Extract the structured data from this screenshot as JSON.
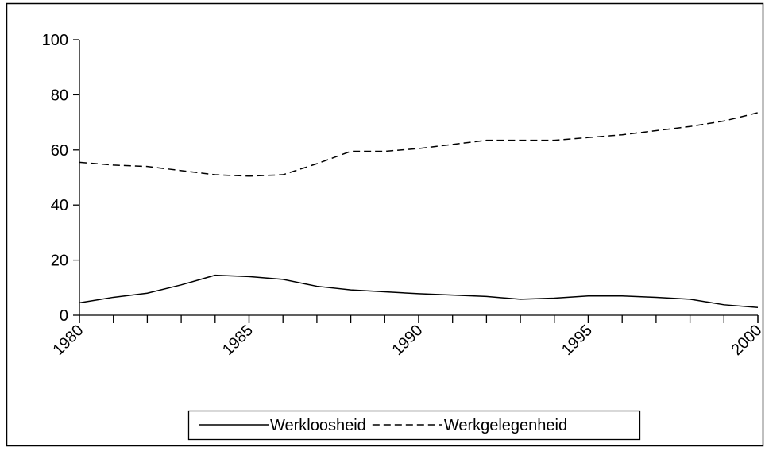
{
  "chart_data": {
    "type": "line",
    "x": [
      1980,
      1981,
      1982,
      1983,
      1984,
      1985,
      1986,
      1987,
      1988,
      1989,
      1990,
      1991,
      1992,
      1993,
      1994,
      1995,
      1996,
      1997,
      1998,
      1999,
      2000
    ],
    "series": [
      {
        "name": "Werkloosheid",
        "color": "#000000",
        "dash": false,
        "values": [
          4.5,
          6.5,
          8,
          11,
          14.5,
          14,
          13,
          10.5,
          9.2,
          8.5,
          7.8,
          7.3,
          6.8,
          5.8,
          6.2,
          7,
          7,
          6.5,
          5.8,
          3.8,
          2.8
        ]
      },
      {
        "name": "Werkgelegenheid",
        "color": "#000000",
        "dash": true,
        "values": [
          55.5,
          54.5,
          54,
          52.5,
          51,
          50.5,
          51,
          55,
          59.5,
          59.5,
          60.5,
          62,
          63.5,
          63.5,
          63.5,
          64.5,
          65.5,
          67,
          68.5,
          70.5,
          73.5
        ]
      }
    ],
    "xlim": [
      1980,
      2000
    ],
    "xticks": [
      1980,
      1985,
      1990,
      1995,
      2000
    ],
    "ylim": [
      0,
      100
    ],
    "yticks": [
      0,
      20,
      40,
      60,
      80,
      100
    ],
    "legend": "bottom"
  }
}
